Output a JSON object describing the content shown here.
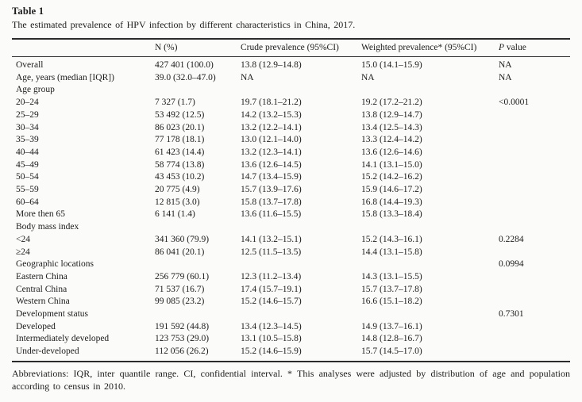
{
  "table": {
    "label": "Table 1",
    "caption": "The estimated prevalence of HPV infection by different characteristics in China, 2017.",
    "columns": [
      "",
      "N (%)",
      "Crude prevalence (95%CI)",
      "Weighted prevalence* (95%CI)",
      "P value"
    ],
    "rows": [
      {
        "label": "Overall",
        "n": "427 401 (100.0)",
        "crude": "13.8 (12.9–14.8)",
        "weighted": "15.0 (14.1–15.9)",
        "p": "NA"
      },
      {
        "label": "Age, years (median [IQR])",
        "n": "39.0 (32.0–47.0)",
        "crude": "NA",
        "weighted": "NA",
        "p": "NA"
      },
      {
        "label": "Age group",
        "n": "",
        "crude": "",
        "weighted": "",
        "p": ""
      },
      {
        "label": "20–24",
        "n": "7 327 (1.7)",
        "crude": "19.7 (18.1–21.2)",
        "weighted": "19.2 (17.2–21.2)",
        "p": "<0.0001"
      },
      {
        "label": "25–29",
        "n": "53 492 (12.5)",
        "crude": "14.2 (13.2–15.3)",
        "weighted": "13.8 (12.9–14.7)",
        "p": ""
      },
      {
        "label": "30–34",
        "n": "86 023 (20.1)",
        "crude": "13.2 (12.2–14.1)",
        "weighted": "13.4 (12.5–14.3)",
        "p": ""
      },
      {
        "label": "35–39",
        "n": "77 178 (18.1)",
        "crude": "13.0 (12.1–14.0)",
        "weighted": "13.3 (12.4–14.2)",
        "p": ""
      },
      {
        "label": "40–44",
        "n": "61 423 (14.4)",
        "crude": "13.2 (12.3–14.1)",
        "weighted": "13.6 (12.6–14.6)",
        "p": ""
      },
      {
        "label": "45–49",
        "n": "58 774 (13.8)",
        "crude": "13.6 (12.6–14.5)",
        "weighted": "14.1 (13.1–15.0)",
        "p": ""
      },
      {
        "label": "50–54",
        "n": "43 453 (10.2)",
        "crude": "14.7 (13.4–15.9)",
        "weighted": "15.2 (14.2–16.2)",
        "p": ""
      },
      {
        "label": "55–59",
        "n": "20 775 (4.9)",
        "crude": "15.7 (13.9–17.6)",
        "weighted": "15.9 (14.6–17.2)",
        "p": ""
      },
      {
        "label": "60–64",
        "n": "12 815 (3.0)",
        "crude": "15.8 (13.7–17.8)",
        "weighted": "16.8 (14.4–19.3)",
        "p": ""
      },
      {
        "label": "More then 65",
        "n": "6 141 (1.4)",
        "crude": "13.6 (11.6–15.5)",
        "weighted": "15.8 (13.3–18.4)",
        "p": ""
      },
      {
        "label": "Body mass index",
        "n": "",
        "crude": "",
        "weighted": "",
        "p": ""
      },
      {
        "label": "<24",
        "n": "341 360 (79.9)",
        "crude": "14.1 (13.2–15.1)",
        "weighted": "15.2 (14.3–16.1)",
        "p": "0.2284"
      },
      {
        "label": "≥24",
        "n": "86 041 (20.1)",
        "crude": "12.5 (11.5–13.5)",
        "weighted": "14.4 (13.1–15.8)",
        "p": ""
      },
      {
        "label": "Geographic locations",
        "n": "",
        "crude": "",
        "weighted": "",
        "p": "0.0994"
      },
      {
        "label": "Eastern China",
        "n": "256 779 (60.1)",
        "crude": "12.3 (11.2–13.4)",
        "weighted": "14.3 (13.1–15.5)",
        "p": ""
      },
      {
        "label": "Central China",
        "n": "71 537 (16.7)",
        "crude": "17.4 (15.7–19.1)",
        "weighted": "15.7 (13.7–17.8)",
        "p": ""
      },
      {
        "label": "Western China",
        "n": "99 085 (23.2)",
        "crude": "15.2 (14.6–15.7)",
        "weighted": "16.6 (15.1–18.2)",
        "p": ""
      },
      {
        "label": "Development status",
        "n": "",
        "crude": "",
        "weighted": "",
        "p": "0.7301"
      },
      {
        "label": "Developed",
        "n": "191 592 (44.8)",
        "crude": "13.4 (12.3–14.5)",
        "weighted": "14.9 (13.7–16.1)",
        "p": ""
      },
      {
        "label": "Intermediately developed",
        "n": "123 753 (29.0)",
        "crude": "13.1 (10.5–15.8)",
        "weighted": "14.8 (12.8–16.7)",
        "p": ""
      },
      {
        "label": "Under-developed",
        "n": "112 056 (26.2)",
        "crude": "15.2 (14.6–15.9)",
        "weighted": "15.7 (14.5–17.0)",
        "p": ""
      }
    ],
    "footnote": "Abbreviations: IQR, inter quantile range. CI, confidential interval. * This analyses were adjusted by distribution of age and population according to census in 2010."
  }
}
